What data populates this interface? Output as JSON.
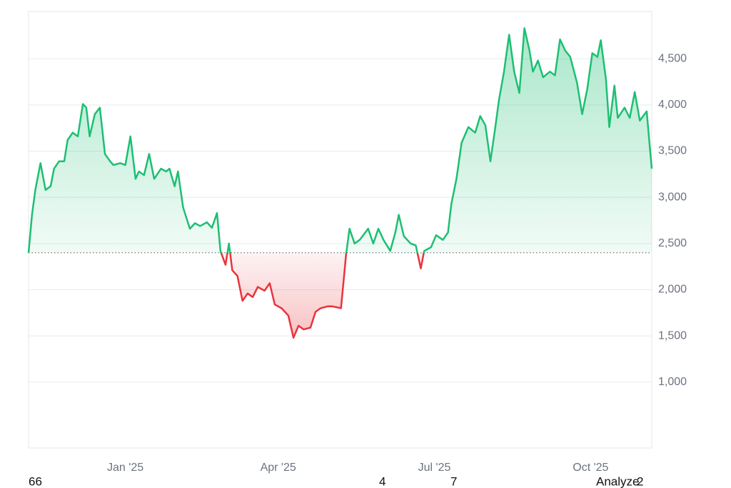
{
  "chart_data": {
    "type": "baseline-line",
    "x": [
      0,
      2,
      4,
      7,
      10,
      13,
      15,
      18,
      21,
      23,
      26,
      29,
      32,
      34,
      36,
      39,
      42,
      45,
      48,
      50,
      54,
      57,
      60,
      63,
      65,
      68,
      71,
      74,
      78,
      81,
      83,
      86,
      88,
      91,
      95,
      98,
      101,
      105,
      108,
      111,
      113,
      116,
      118,
      120,
      123,
      126,
      129,
      132,
      135,
      139,
      142,
      145,
      149,
      153,
      156,
      159,
      162,
      166,
      169,
      172,
      176,
      179,
      184,
      187,
      189,
      192,
      195,
      200,
      203,
      206,
      209,
      213,
      216,
      218,
      221,
      225,
      228,
      231,
      233,
      237,
      240,
      244,
      247,
      249,
      252,
      255,
      259,
      263,
      266,
      269,
      272,
      275,
      277,
      280,
      283,
      286,
      289,
      292,
      295,
      297,
      300,
      303,
      307,
      310,
      313,
      316,
      319,
      323,
      326,
      329,
      332,
      335,
      337,
      340,
      342,
      345,
      347,
      351,
      354,
      357,
      360,
      364,
      367
    ],
    "values": [
      2400,
      2810,
      3080,
      3370,
      3080,
      3120,
      3310,
      3390,
      3390,
      3620,
      3700,
      3660,
      4010,
      3970,
      3660,
      3900,
      3970,
      3470,
      3390,
      3350,
      3370,
      3350,
      3660,
      3200,
      3280,
      3240,
      3470,
      3200,
      3310,
      3280,
      3310,
      3120,
      3280,
      2890,
      2660,
      2720,
      2690,
      2730,
      2670,
      2830,
      2420,
      2270,
      2500,
      2210,
      2150,
      1880,
      1960,
      1920,
      2030,
      1990,
      2070,
      1840,
      1800,
      1720,
      1480,
      1610,
      1570,
      1590,
      1760,
      1800,
      1820,
      1820,
      1800,
      2380,
      2660,
      2500,
      2540,
      2660,
      2500,
      2660,
      2540,
      2420,
      2620,
      2810,
      2580,
      2500,
      2480,
      2230,
      2420,
      2460,
      2590,
      2540,
      2620,
      2930,
      3200,
      3590,
      3760,
      3700,
      3880,
      3780,
      3390,
      3780,
      4050,
      4360,
      4760,
      4360,
      4130,
      4830,
      4590,
      4360,
      4480,
      4300,
      4360,
      4320,
      4710,
      4590,
      4520,
      4240,
      3900,
      4170,
      4560,
      4520,
      4700,
      4280,
      3760,
      4210,
      3860,
      3970,
      3860,
      4140,
      3830,
      3930,
      3310
    ],
    "baseline": 2400,
    "up_color": "#1dbf73",
    "down_color": "#e8343c",
    "xlim": [
      0,
      367
    ],
    "xticks": [
      {
        "value": 57,
        "label": "Jan '25"
      },
      {
        "value": 147,
        "label": "Apr '25"
      },
      {
        "value": 239,
        "label": "Jul '25"
      },
      {
        "value": 331,
        "label": "Oct '25"
      }
    ],
    "ylim": [
      287,
      5012
    ],
    "yticks": [
      {
        "value": 1000,
        "label": "1,000"
      },
      {
        "value": 1500,
        "label": "1,500"
      },
      {
        "value": 2000,
        "label": "2,000"
      },
      {
        "value": 2500,
        "label": "2,500"
      },
      {
        "value": 3000,
        "label": "3,000"
      },
      {
        "value": 3500,
        "label": "3,500"
      },
      {
        "value": 4000,
        "label": "4,000"
      },
      {
        "value": 4500,
        "label": "4,500"
      }
    ],
    "grid": true
  },
  "overlay_text": [
    "66",
    "4",
    "7",
    "Analyze",
    "2"
  ]
}
